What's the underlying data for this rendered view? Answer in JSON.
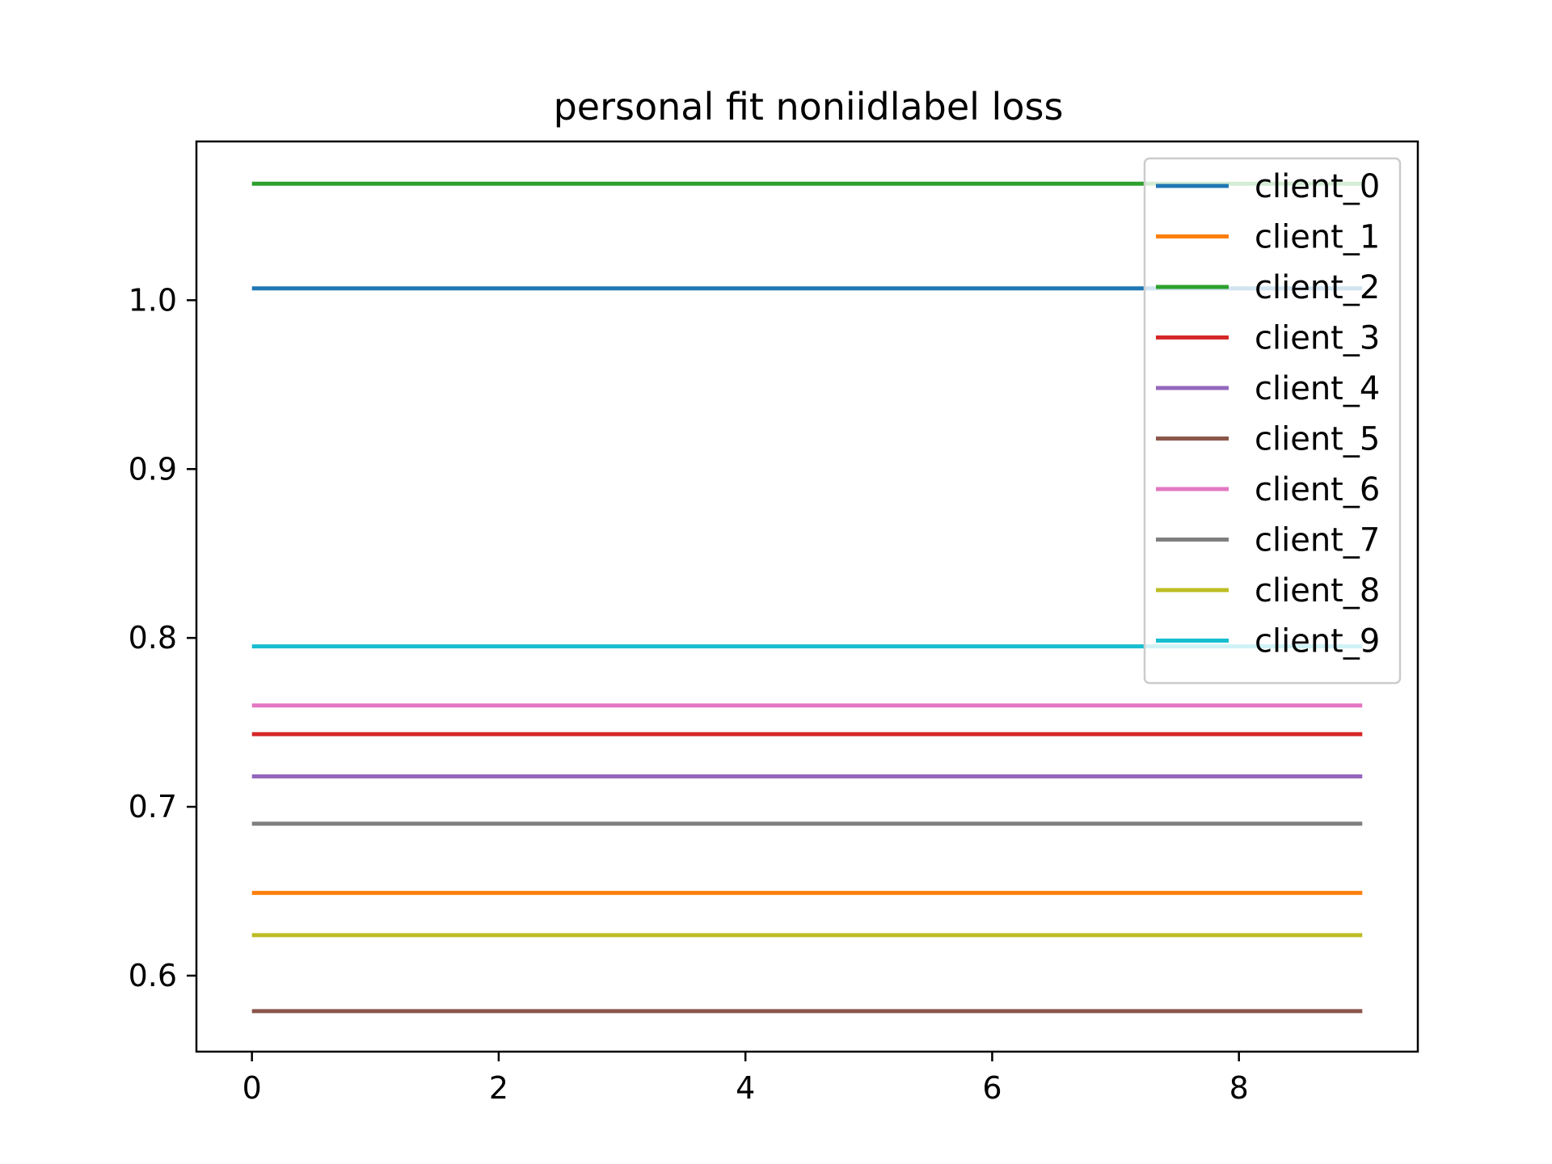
{
  "chart_data": {
    "type": "line",
    "title": "personal fit noniidlabel loss",
    "xlabel": "",
    "ylabel": "",
    "x": [
      0,
      1,
      2,
      3,
      4,
      5,
      6,
      7,
      8,
      9
    ],
    "xlim": [
      -0.45,
      9.45
    ],
    "ylim": [
      0.555,
      1.094
    ],
    "xticks": [
      0,
      2,
      4,
      6,
      8
    ],
    "xtick_labels": [
      "0",
      "2",
      "4",
      "6",
      "8"
    ],
    "yticks": [
      0.6,
      0.7,
      0.8,
      0.9,
      1.0
    ],
    "ytick_labels": [
      "0.6",
      "0.7",
      "0.8",
      "0.9",
      "1.0"
    ],
    "grid": false,
    "legend_position": "upper right",
    "series": [
      {
        "name": "client_0",
        "color": "#1f77b4",
        "values": [
          1.007,
          1.007,
          1.007,
          1.007,
          1.007,
          1.007,
          1.007,
          1.007,
          1.007,
          1.007
        ]
      },
      {
        "name": "client_1",
        "color": "#ff7f0e",
        "values": [
          0.649,
          0.649,
          0.649,
          0.649,
          0.649,
          0.649,
          0.649,
          0.649,
          0.649,
          0.649
        ]
      },
      {
        "name": "client_2",
        "color": "#2ca02c",
        "values": [
          1.069,
          1.069,
          1.069,
          1.069,
          1.069,
          1.069,
          1.069,
          1.069,
          1.069,
          1.069
        ]
      },
      {
        "name": "client_3",
        "color": "#d62728",
        "values": [
          0.743,
          0.743,
          0.743,
          0.743,
          0.743,
          0.743,
          0.743,
          0.743,
          0.743,
          0.743
        ]
      },
      {
        "name": "client_4",
        "color": "#9467bd",
        "values": [
          0.718,
          0.718,
          0.718,
          0.718,
          0.718,
          0.718,
          0.718,
          0.718,
          0.718,
          0.718
        ]
      },
      {
        "name": "client_5",
        "color": "#8c564b",
        "values": [
          0.579,
          0.579,
          0.579,
          0.579,
          0.579,
          0.579,
          0.579,
          0.579,
          0.579,
          0.579
        ]
      },
      {
        "name": "client_6",
        "color": "#e377c2",
        "values": [
          0.76,
          0.76,
          0.76,
          0.76,
          0.76,
          0.76,
          0.76,
          0.76,
          0.76,
          0.76
        ]
      },
      {
        "name": "client_7",
        "color": "#7f7f7f",
        "values": [
          0.69,
          0.69,
          0.69,
          0.69,
          0.69,
          0.69,
          0.69,
          0.69,
          0.69,
          0.69
        ]
      },
      {
        "name": "client_8",
        "color": "#bcbd22",
        "values": [
          0.624,
          0.624,
          0.624,
          0.624,
          0.624,
          0.624,
          0.624,
          0.624,
          0.624,
          0.624
        ]
      },
      {
        "name": "client_9",
        "color": "#17becf",
        "values": [
          0.795,
          0.795,
          0.795,
          0.795,
          0.795,
          0.795,
          0.795,
          0.795,
          0.795,
          0.795
        ]
      }
    ]
  }
}
